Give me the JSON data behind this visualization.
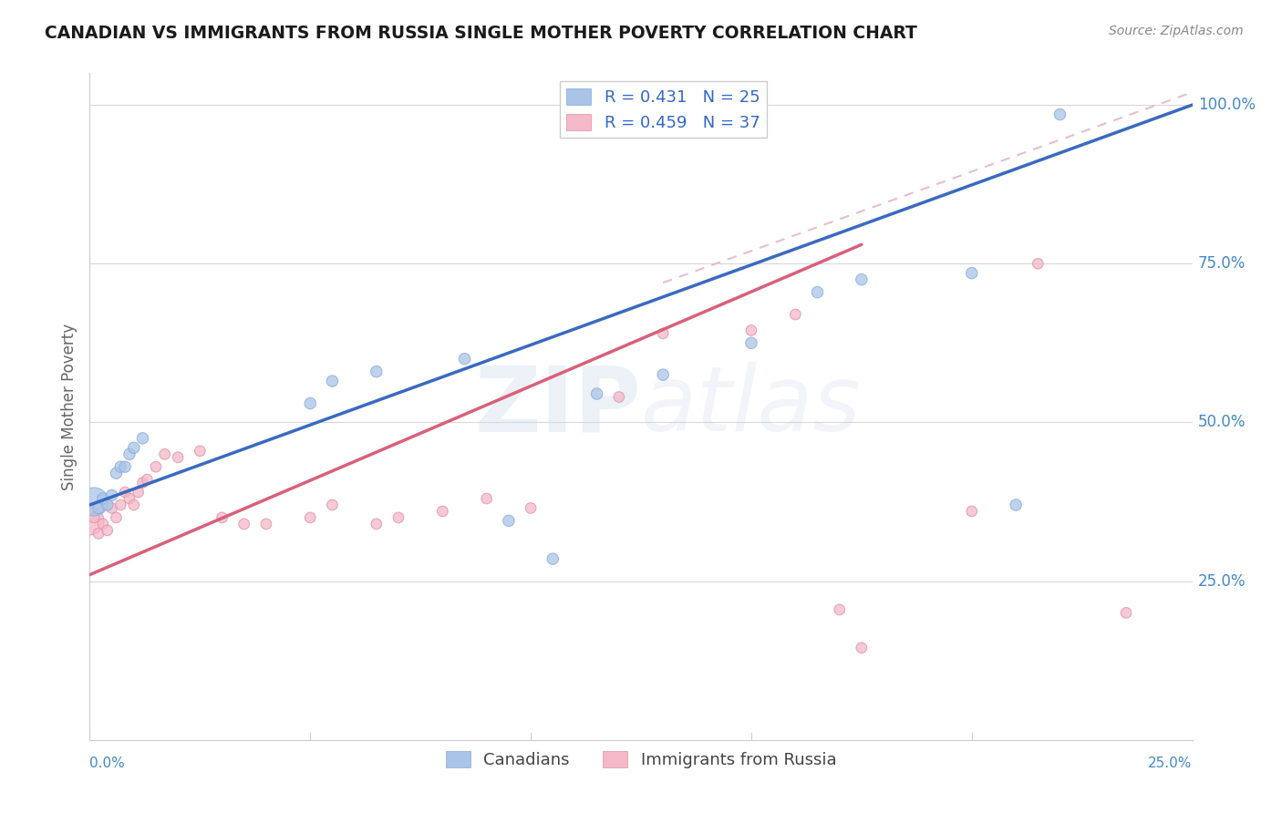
{
  "title": "CANADIAN VS IMMIGRANTS FROM RUSSIA SINGLE MOTHER POVERTY CORRELATION CHART",
  "source": "Source: ZipAtlas.com",
  "ylabel": "Single Mother Poverty",
  "watermark": "ZIPatlas",
  "legend_entries": [
    {
      "label": "R = 0.431   N = 25",
      "color": "#aac4e8"
    },
    {
      "label": "R = 0.459   N = 37",
      "color": "#f4afc0"
    }
  ],
  "legend_bottom": [
    "Canadians",
    "Immigrants from Russia"
  ],
  "xlim": [
    0,
    0.25
  ],
  "ylim": [
    0.0,
    1.05
  ],
  "yticks": [
    0.25,
    0.5,
    0.75,
    1.0
  ],
  "ytick_labels": [
    "25.0%",
    "50.0%",
    "75.0%",
    "100.0%"
  ],
  "blue_line_color": "#3a6abf",
  "pink_line_color": "#d9607a",
  "dashed_line_color": "#e0a0b0",
  "grid_color": "#d8d8d8",
  "background_color": "#ffffff",
  "axis_color": "#4488cc",
  "canadians_x": [
    0.001,
    0.002,
    0.003,
    0.004,
    0.005,
    0.006,
    0.007,
    0.008,
    0.009,
    0.01,
    0.012,
    0.05,
    0.055,
    0.065,
    0.085,
    0.095,
    0.105,
    0.115,
    0.13,
    0.15,
    0.165,
    0.175,
    0.2,
    0.21,
    0.22
  ],
  "canadians_y": [
    0.375,
    0.365,
    0.38,
    0.37,
    0.385,
    0.42,
    0.43,
    0.43,
    0.45,
    0.46,
    0.475,
    0.53,
    0.565,
    0.58,
    0.6,
    0.345,
    0.285,
    0.545,
    0.575,
    0.625,
    0.705,
    0.725,
    0.735,
    0.37,
    0.985
  ],
  "canadians_size": [
    500,
    80,
    80,
    80,
    80,
    80,
    80,
    80,
    80,
    80,
    80,
    80,
    80,
    80,
    80,
    80,
    80,
    80,
    80,
    80,
    80,
    80,
    80,
    80,
    80
  ],
  "russians_x": [
    0.0,
    0.001,
    0.002,
    0.003,
    0.004,
    0.005,
    0.006,
    0.007,
    0.008,
    0.009,
    0.01,
    0.011,
    0.012,
    0.013,
    0.015,
    0.017,
    0.02,
    0.025,
    0.03,
    0.035,
    0.04,
    0.05,
    0.055,
    0.065,
    0.07,
    0.08,
    0.09,
    0.1,
    0.12,
    0.13,
    0.15,
    0.16,
    0.17,
    0.175,
    0.2,
    0.215,
    0.235
  ],
  "russians_y": [
    0.345,
    0.35,
    0.325,
    0.34,
    0.33,
    0.365,
    0.35,
    0.37,
    0.39,
    0.38,
    0.37,
    0.39,
    0.405,
    0.41,
    0.43,
    0.45,
    0.445,
    0.455,
    0.35,
    0.34,
    0.34,
    0.35,
    0.37,
    0.34,
    0.35,
    0.36,
    0.38,
    0.365,
    0.54,
    0.64,
    0.645,
    0.67,
    0.205,
    0.145,
    0.36,
    0.75,
    0.2
  ],
  "russians_size": [
    500,
    70,
    70,
    70,
    70,
    70,
    70,
    70,
    70,
    70,
    70,
    70,
    70,
    70,
    70,
    70,
    70,
    70,
    70,
    70,
    70,
    70,
    70,
    70,
    70,
    70,
    70,
    70,
    70,
    70,
    70,
    70,
    70,
    70,
    70,
    70,
    70
  ],
  "blue_line_x0": 0.0,
  "blue_line_y0": 0.37,
  "blue_line_x1": 0.25,
  "blue_line_y1": 1.0,
  "pink_line_x0": 0.0,
  "pink_line_y0": 0.26,
  "pink_line_x1": 0.175,
  "pink_line_y1": 0.78
}
